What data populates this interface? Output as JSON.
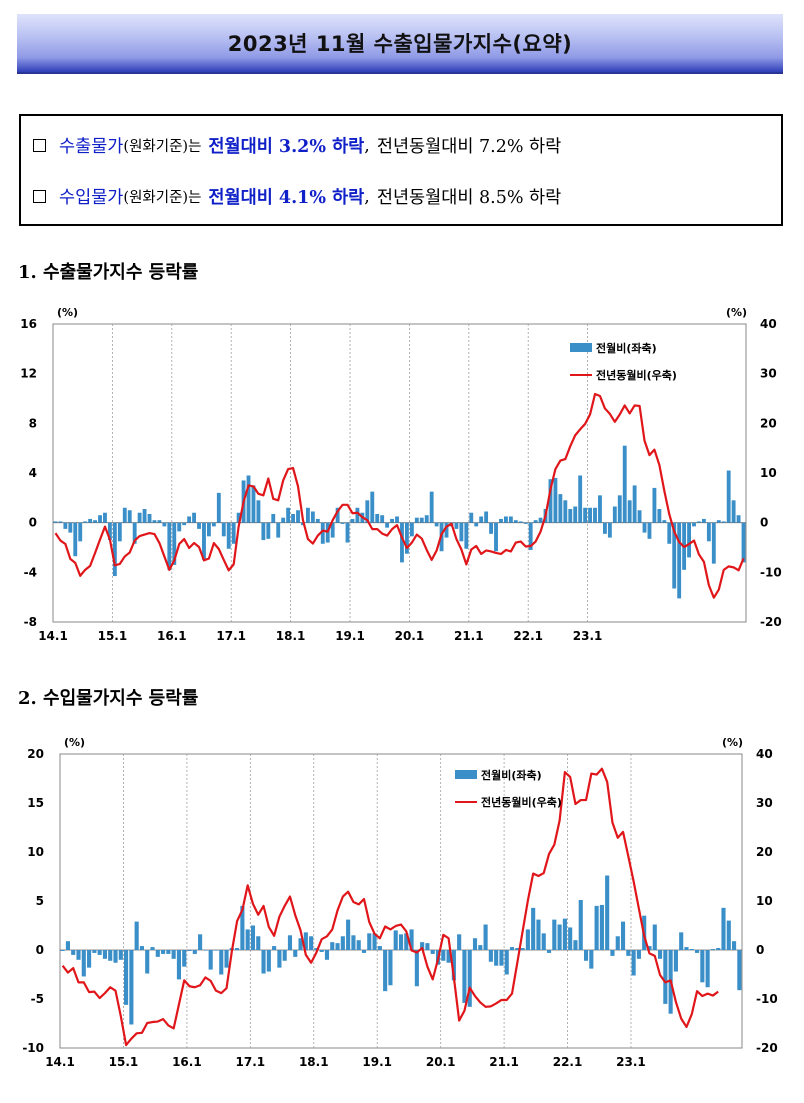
{
  "title": "2023년  11월  수출입물가지수(요약)",
  "summary": [
    {
      "box": "□",
      "item": "수출물가",
      "basis": "(원화기준)는",
      "mom": "전월대비 3.2% 하락",
      "comma": ",",
      "yoy": "전년동월대비 7.2% 하락"
    },
    {
      "box": "□",
      "item": "수입물가",
      "basis": "(원화기준)는",
      "mom": "전월대비 4.1% 하락",
      "comma": ",",
      "yoy": "전년동월대비 8.5% 하락"
    }
  ],
  "sections": [
    "1.  수출물가지수 등락률",
    "2.  수입물가지수 등락률"
  ],
  "colors": {
    "bar": "#3a8fc8",
    "line": "#e0161a",
    "grid": "#a0a0a0"
  },
  "chart_data": [
    {
      "type": "bar",
      "x_tick_labels": [
        "14.1",
        "15.1",
        "16.1",
        "17.1",
        "18.1",
        "19.1",
        "20.1",
        "21.1",
        "22.1",
        "23.1"
      ],
      "grid": "vertical dashed at each January",
      "legend": [
        "전월비(좌축)",
        "전년동월비(우축)"
      ],
      "legend_position": "top-right",
      "left_unit": "(%)",
      "right_unit": "(%)",
      "left_ylim": [
        -8,
        16
      ],
      "right_ylim": [
        -20,
        40
      ],
      "left_ticks": [
        "16",
        "12",
        "8",
        "4",
        "0",
        "-4",
        "-8"
      ],
      "right_ticks": [
        "40",
        "30",
        "20",
        "10",
        "0",
        "-10",
        "-20"
      ],
      "series": [
        {
          "name": "전월비(좌축)",
          "axis": "left",
          "type": "bar",
          "values": [
            0.1,
            0.1,
            -0.5,
            -0.8,
            -2.7,
            -1.5,
            0.1,
            0.3,
            0.2,
            0.6,
            0.8,
            -1.4,
            -4.3,
            -1.5,
            1.2,
            1.0,
            -1.7,
            0.8,
            1.1,
            0.7,
            0.2,
            0.2,
            -0.3,
            -3.8,
            -3.4,
            -0.7,
            -0.2,
            0.5,
            0.8,
            -0.5,
            -3.0,
            -1.1,
            -0.3,
            2.4,
            -1.1,
            -2.1,
            -1.7,
            0.8,
            3.4,
            3.8,
            3.0,
            1.8,
            -1.4,
            -1.3,
            0.7,
            -1.2,
            0.4,
            1.2,
            0.7,
            1.0,
            -0.2,
            1.2,
            0.9,
            0.3,
            -1.7,
            -1.6,
            -1.2,
            1.2,
            -0.1,
            -1.6,
            0.3,
            1.2,
            0.8,
            1.8,
            2.5,
            0.7,
            0.6,
            -0.4,
            0.3,
            0.5,
            -3.2,
            -2.5,
            -1.1,
            0.4,
            0.4,
            0.6,
            2.5,
            -0.3,
            -2.3,
            -1.2,
            -0.3,
            -0.5,
            -1.5,
            -2.1,
            0.8,
            -0.3,
            0.5,
            0.9,
            -0.9,
            -2.3,
            0.3,
            0.5,
            0.5,
            0.2,
            0.1,
            -0.1,
            -2.2,
            0.2,
            0.4,
            1.1,
            3.5,
            3.6,
            2.3,
            1.8,
            1.1,
            1.3,
            3.8,
            1.2,
            1.2,
            1.2,
            2.2,
            -0.9,
            -1.2,
            1.3,
            2.2,
            6.2,
            1.8,
            3.0,
            1.0,
            -0.8,
            -1.3,
            2.8,
            1.1,
            0.2,
            -1.7,
            -5.3,
            -6.1,
            -3.8,
            -2.8,
            -0.3,
            0.1,
            0.3,
            -1.5,
            -3.3,
            0.2,
            0.1,
            4.2,
            1.8,
            0.6,
            -3.2
          ]
        },
        {
          "name": "전년동월비(우축)",
          "axis": "right",
          "type": "line",
          "values": [
            -2.1,
            -3.6,
            -4.3,
            -7.3,
            -8.1,
            -10.7,
            -9.5,
            -8.7,
            -6.1,
            -3.4,
            -0.8,
            -3.4,
            -8.6,
            -8.3,
            -6.8,
            -6.0,
            -3.6,
            -2.7,
            -2.4,
            -2.1,
            -2.3,
            -4.1,
            -6.8,
            -9.5,
            -7.6,
            -4.3,
            -3.3,
            -5.1,
            -4.1,
            -4.9,
            -7.6,
            -7.2,
            -4.1,
            -5.3,
            -7.5,
            -9.6,
            -8.4,
            -0.8,
            4.2,
            7.5,
            7.3,
            5.8,
            5.5,
            8.9,
            4.8,
            4.5,
            8.5,
            10.8,
            11.0,
            7.3,
            0.5,
            -3.3,
            -4.2,
            -2.6,
            -1.6,
            -1.8,
            0.5,
            2.3,
            3.6,
            3.6,
            1.9,
            2.0,
            1.1,
            0.5,
            -1.3,
            -1.3,
            -2.2,
            -2.6,
            -1.3,
            -0.5,
            -3.0,
            -5.1,
            -4.0,
            -2.4,
            -3.2,
            -5.5,
            -7.5,
            -5.6,
            -2.3,
            -0.8,
            -0.2,
            -3.3,
            -5.4,
            -8.4,
            -5.4,
            -4.7,
            -6.3,
            -5.6,
            -5.8,
            -6.1,
            -6.3,
            -5.5,
            -5.8,
            -4.0,
            -3.8,
            -4.8,
            -4.7,
            -3.8,
            -1.8,
            1.4,
            6.7,
            10.8,
            12.5,
            12.8,
            15.4,
            17.6,
            18.8,
            19.9,
            21.8,
            25.9,
            25.5,
            23.0,
            21.9,
            20.3,
            21.8,
            23.6,
            22.0,
            23.6,
            23.5,
            16.5,
            13.6,
            14.7,
            11.6,
            6.4,
            1.7,
            -1.8,
            -3.9,
            -4.9,
            -4.3,
            -3.6,
            -6.4,
            -7.9,
            -12.6,
            -15.1,
            -13.5,
            -9.5,
            -8.8,
            -9.0,
            -9.6,
            -7.2
          ]
        }
      ]
    },
    {
      "type": "bar",
      "x_tick_labels": [
        "14.1",
        "15.1",
        "16.1",
        "17.1",
        "18.1",
        "19.1",
        "20.1",
        "21.1",
        "22.1",
        "23.1"
      ],
      "grid": "vertical dashed at each January",
      "legend": [
        "전월비(좌축)",
        "전년동월비(우축)"
      ],
      "legend_position": "top-right",
      "left_unit": "(%)",
      "right_unit": "(%)",
      "left_ylim": [
        -10,
        20
      ],
      "right_ylim": [
        -20,
        40
      ],
      "left_ticks": [
        "20",
        "15",
        "10",
        "5",
        "0",
        "-5",
        "-10"
      ],
      "right_ticks": [
        "40",
        "30",
        "20",
        "10",
        "0",
        "-10",
        "-20"
      ],
      "series": [
        {
          "name": "전월비(좌축)",
          "axis": "left",
          "type": "bar",
          "values": [
            -0.1,
            0.9,
            -0.5,
            -1.0,
            -2.7,
            -1.8,
            -0.3,
            -0.5,
            -0.9,
            -1.1,
            -1.3,
            -1.0,
            -5.6,
            -7.6,
            2.9,
            0.4,
            -2.4,
            0.3,
            -0.7,
            -0.4,
            -0.4,
            -0.9,
            -3.0,
            -1.7,
            -0.1,
            -0.4,
            1.6,
            0.0,
            -2.0,
            0.0,
            -2.5,
            -1.8,
            0.2,
            0.2,
            4.5,
            2.1,
            2.5,
            1.4,
            -2.4,
            -2.2,
            0.4,
            -1.8,
            -1.1,
            1.5,
            -0.7,
            1.2,
            1.8,
            1.4,
            0.2,
            -0.2,
            -1.0,
            0.8,
            0.7,
            1.4,
            3.1,
            1.5,
            1.0,
            -0.3,
            1.7,
            1.7,
            0.4,
            -4.2,
            -3.6,
            2.0,
            1.6,
            1.7,
            2.1,
            -3.7,
            0.8,
            0.7,
            -0.4,
            -1.5,
            -1.1,
            -1.3,
            -3.1,
            1.6,
            -5.4,
            -5.8,
            1.2,
            0.5,
            2.6,
            -1.2,
            -1.6,
            -1.6,
            -2.5,
            0.3,
            0.2,
            0.2,
            2.1,
            4.3,
            3.1,
            1.7,
            -0.3,
            3.1,
            2.6,
            3.2,
            2.3,
            1.0,
            5.1,
            -1.1,
            -1.9,
            4.5,
            4.6,
            7.6,
            -0.6,
            1.4,
            2.9,
            -0.6,
            -2.6,
            -0.9,
            3.5,
            0.4,
            2.6,
            -0.9,
            -5.5,
            -6.5,
            -2.2,
            1.8,
            0.3,
            0.1,
            -0.3,
            -3.3,
            -3.8,
            0.1,
            0.2,
            4.3,
            3.0,
            0.9,
            -4.1
          ]
        },
        {
          "name": "전년동월비(우축)",
          "axis": "right",
          "type": "line",
          "values": [
            -3.2,
            -4.6,
            -3.7,
            -6.6,
            -6.6,
            -8.6,
            -8.5,
            -9.8,
            -8.8,
            -7.6,
            -8.3,
            -13.5,
            -19.4,
            -18.1,
            -17.0,
            -16.9,
            -14.9,
            -14.7,
            -14.6,
            -14.1,
            -15.4,
            -16.0,
            -11.1,
            -6.2,
            -7.4,
            -7.6,
            -7.2,
            -5.6,
            -6.3,
            -8.3,
            -8.8,
            -7.8,
            -0.3,
            5.9,
            8.2,
            13.2,
            9.4,
            7.2,
            9.0,
            4.7,
            2.9,
            6.8,
            9.0,
            10.9,
            7.1,
            4.0,
            -1.0,
            -2.6,
            -0.5,
            2.2,
            2.8,
            4.2,
            8.1,
            10.9,
            11.9,
            9.8,
            9.3,
            10.4,
            5.7,
            3.3,
            2.4,
            4.8,
            4.2,
            4.9,
            5.2,
            3.8,
            -0.1,
            -0.5,
            0.4,
            -3.4,
            -6.0,
            -1.9,
            3.1,
            2.4,
            -5.6,
            -14.4,
            -12.4,
            -7.7,
            -9.4,
            -10.7,
            -11.6,
            -11.5,
            -10.9,
            -10.2,
            -10.2,
            -8.9,
            -2.6,
            3.8,
            10.1,
            15.6,
            15.1,
            15.7,
            19.6,
            21.5,
            26.4,
            36.3,
            35.3,
            29.8,
            30.6,
            30.6,
            36.0,
            35.8,
            37.0,
            34.3,
            26.0,
            22.9,
            24.1,
            19.1,
            14.0,
            8.4,
            2.9,
            -0.7,
            -1.2,
            -5.1,
            -6.6,
            -6.2,
            -10.6,
            -14.0,
            -15.7,
            -13.1,
            -8.4,
            -9.4,
            -8.9,
            -9.3,
            -8.5
          ]
        }
      ]
    }
  ]
}
